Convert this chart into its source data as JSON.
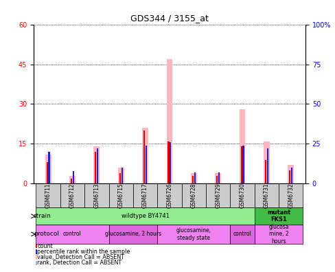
{
  "title": "GDS344 / 3155_at",
  "samples": [
    "GSM6711",
    "GSM6712",
    "GSM6713",
    "GSM6715",
    "GSM6717",
    "GSM6726",
    "GSM6728",
    "GSM6729",
    "GSM6730",
    "GSM6731",
    "GSM6732"
  ],
  "count_values": [
    8,
    2,
    12,
    4,
    20,
    16,
    3,
    3,
    14,
    9,
    5
  ],
  "rank_values": [
    20,
    8,
    22,
    10,
    24,
    26,
    7,
    7,
    24,
    22,
    10
  ],
  "absent_value_values": [
    11,
    3,
    14,
    6,
    21,
    47,
    4,
    4,
    28,
    16,
    7
  ],
  "absent_rank_values": [
    20,
    8,
    22,
    10,
    24,
    26,
    7,
    7,
    24,
    22,
    10
  ],
  "ylim_left": [
    0,
    60
  ],
  "ylim_right": [
    0,
    100
  ],
  "yticks_left": [
    0,
    15,
    30,
    45,
    60
  ],
  "yticks_right": [
    0,
    25,
    50,
    75,
    100
  ],
  "strain_groups": [
    {
      "label": "wildtype BY4741",
      "start": 0,
      "end": 9,
      "color": "#90ee90",
      "bold": false
    },
    {
      "label": "mutant\nFKS1",
      "start": 9,
      "end": 11,
      "color": "#44bb44",
      "bold": true
    }
  ],
  "protocol_groups": [
    {
      "label": "control",
      "start": 0,
      "end": 3,
      "color": "#ee82ee"
    },
    {
      "label": "glucosamine, 2 hours",
      "start": 3,
      "end": 5,
      "color": "#dd66dd"
    },
    {
      "label": "glucosamine,\nsteady state",
      "start": 5,
      "end": 8,
      "color": "#ee82ee"
    },
    {
      "label": "control",
      "start": 8,
      "end": 9,
      "color": "#dd66dd"
    },
    {
      "label": "glucosa\nmine, 2\nhours",
      "start": 9,
      "end": 11,
      "color": "#ee82ee"
    }
  ],
  "color_count": "#dd0000",
  "color_rank": "#2222cc",
  "color_absent_value": "#ffb6c1",
  "color_absent_rank": "#aaaaee",
  "legend_items": [
    {
      "color": "#dd0000",
      "label": "count"
    },
    {
      "color": "#2222cc",
      "label": "percentile rank within the sample"
    },
    {
      "color": "#ffb6c1",
      "label": "value, Detection Call = ABSENT"
    },
    {
      "color": "#aaaaee",
      "label": "rank, Detection Call = ABSENT"
    }
  ]
}
